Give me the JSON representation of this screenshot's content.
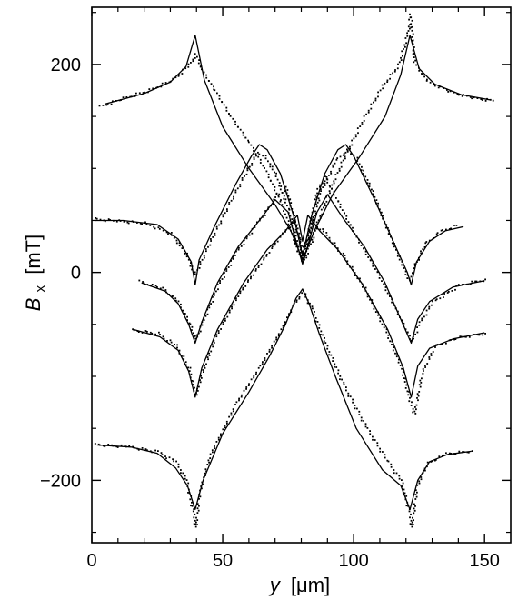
{
  "chart_data": {
    "type": "line",
    "title": "",
    "xlabel": "y [μm]",
    "xlabel_parts": {
      "symbol": "y",
      "unit": "[μm]"
    },
    "ylabel": "B_x [mT]",
    "ylabel_parts": {
      "symbol": "B",
      "subscript": "x",
      "unit": "[mT]"
    },
    "xlim": [
      0,
      160
    ],
    "ylim": [
      -260,
      255
    ],
    "xticks": [
      0,
      50,
      100,
      150
    ],
    "xtick_labels": [
      "0",
      "50",
      "100",
      "150"
    ],
    "yticks": [
      -200,
      0,
      200
    ],
    "ytick_labels": [
      "−200",
      "0",
      "200"
    ],
    "grid": false,
    "legend": "none",
    "colors": {
      "line": "#000000",
      "points": "#000000",
      "background": "#ffffff"
    },
    "series": [
      {
        "kind": "theory-line",
        "x": [
          5,
          20,
          30,
          36,
          39.5,
          43,
          50,
          60,
          70,
          76,
          80.5,
          85,
          92,
          102,
          112,
          118,
          121.5,
          125,
          131,
          141,
          152
        ],
        "y": [
          162,
          172,
          183,
          198,
          228,
          185,
          140,
          100,
          65,
          40,
          12,
          40,
          75,
          110,
          150,
          190,
          228,
          196,
          181,
          171,
          166
        ]
      },
      {
        "kind": "theory-line",
        "x": [
          1,
          12,
          25,
          33,
          38,
          39.5,
          41,
          47,
          55,
          61,
          64,
          67,
          72,
          77,
          80.5,
          84,
          89,
          94,
          97,
          100,
          108,
          116,
          120.5,
          122,
          124,
          129,
          135,
          142
        ],
        "y": [
          50,
          50,
          46,
          32,
          10,
          -12,
          12,
          45,
          85,
          112,
          123,
          118,
          95,
          55,
          16,
          55,
          95,
          118,
          123,
          112,
          70,
          25,
          0,
          -12,
          10,
          30,
          40,
          44
        ]
      },
      {
        "kind": "theory-line",
        "x": [
          19,
          28,
          33,
          37,
          39.5,
          42,
          48,
          56,
          64,
          70,
          75,
          78,
          80.5,
          83,
          86,
          90,
          96,
          104,
          112,
          117.5,
          122,
          124.5,
          129,
          138,
          150
        ],
        "y": [
          -10,
          -18,
          -30,
          -50,
          -68,
          -48,
          -10,
          25,
          50,
          70,
          58,
          30,
          8,
          30,
          58,
          75,
          52,
          25,
          -10,
          -42,
          -68,
          -45,
          -28,
          -14,
          -8
        ]
      },
      {
        "kind": "theory-line",
        "x": [
          16,
          26,
          33,
          37,
          39.5,
          42,
          48,
          58,
          67,
          74,
          78.5,
          80.5,
          82.5,
          87,
          94,
          103,
          113,
          119,
          122,
          124.5,
          129,
          138,
          150
        ],
        "y": [
          -55,
          -62,
          -75,
          -95,
          -120,
          -92,
          -55,
          -10,
          22,
          40,
          55,
          30,
          55,
          40,
          22,
          -10,
          -55,
          -92,
          -120,
          -90,
          -73,
          -64,
          -58
        ]
      },
      {
        "kind": "theory-line",
        "x": [
          2,
          15,
          25,
          32,
          36.5,
          39.5,
          42.5,
          50,
          60,
          68,
          74,
          78,
          80.5,
          83,
          87,
          93,
          101,
          111,
          118,
          121.5,
          124.5,
          129,
          136,
          145
        ],
        "y": [
          -166,
          -168,
          -174,
          -188,
          -205,
          -228,
          -200,
          -155,
          -115,
          -80,
          -50,
          -25,
          -16,
          -30,
          -60,
          -100,
          -150,
          -190,
          -205,
          -228,
          -200,
          -182,
          -175,
          -172
        ]
      },
      {
        "kind": "measured-points",
        "x": [
          3,
          12,
          22,
          31,
          37,
          39.5,
          42,
          47,
          53,
          60,
          66,
          72,
          76,
          78.5,
          80.5,
          83,
          86,
          91,
          97,
          104,
          111,
          117,
          120.5,
          121.5,
          123,
          128,
          137,
          146,
          153
        ],
        "y": [
          160,
          168,
          176,
          186,
          200,
          210,
          195,
          175,
          150,
          125,
          100,
          68,
          40,
          20,
          10,
          25,
          48,
          82,
          115,
          150,
          180,
          200,
          230,
          248,
          202,
          184,
          174,
          168,
          166
        ]
      },
      {
        "kind": "measured-points",
        "x": [
          1,
          10,
          20,
          30,
          36,
          39,
          41,
          45,
          52,
          59,
          63,
          66,
          70,
          75,
          78,
          80.5,
          83,
          87,
          93,
          97,
          101,
          107,
          113,
          118,
          121,
          123,
          127,
          133,
          139
        ],
        "y": [
          52,
          50,
          48,
          38,
          18,
          -2,
          8,
          30,
          65,
          98,
          115,
          112,
          95,
          60,
          30,
          14,
          38,
          78,
          108,
          118,
          110,
          78,
          40,
          10,
          -8,
          6,
          28,
          40,
          46
        ]
      },
      {
        "kind": "measured-points",
        "x": [
          18,
          27,
          33,
          37.5,
          39.5,
          42,
          48,
          55,
          63,
          70,
          74,
          78,
          80.5,
          83,
          86,
          89,
          94,
          101,
          109,
          116,
          120.5,
          122,
          125,
          130,
          140,
          150
        ],
        "y": [
          -8,
          -15,
          -28,
          -50,
          -64,
          -48,
          -12,
          20,
          48,
          72,
          82,
          45,
          12,
          45,
          80,
          92,
          68,
          34,
          0,
          -35,
          -58,
          -66,
          -48,
          -28,
          -12,
          -6
        ]
      },
      {
        "kind": "measured-points",
        "x": [
          15,
          25,
          32,
          37,
          39.5,
          42,
          47,
          56,
          65,
          72,
          77,
          80.5,
          84,
          89,
          96,
          104,
          112,
          118,
          121.5,
          123,
          126,
          131,
          140,
          150
        ],
        "y": [
          -55,
          -58,
          -70,
          -92,
          -118,
          -96,
          -62,
          -20,
          12,
          36,
          50,
          22,
          50,
          38,
          16,
          -15,
          -55,
          -90,
          -125,
          -136,
          -95,
          -70,
          -62,
          -58
        ]
      },
      {
        "kind": "measured-points",
        "x": [
          1,
          14,
          25,
          32,
          36,
          38.5,
          39.5,
          41,
          45,
          55,
          64,
          72,
          77,
          80.5,
          84,
          89,
          96,
          105,
          113,
          118,
          121,
          122,
          124,
          128,
          135,
          145
        ],
        "y": [
          -165,
          -167,
          -172,
          -182,
          -200,
          -230,
          -245,
          -210,
          -175,
          -125,
          -90,
          -55,
          -30,
          -18,
          -35,
          -68,
          -108,
          -150,
          -182,
          -200,
          -230,
          -245,
          -205,
          -183,
          -174,
          -171
        ]
      }
    ]
  }
}
